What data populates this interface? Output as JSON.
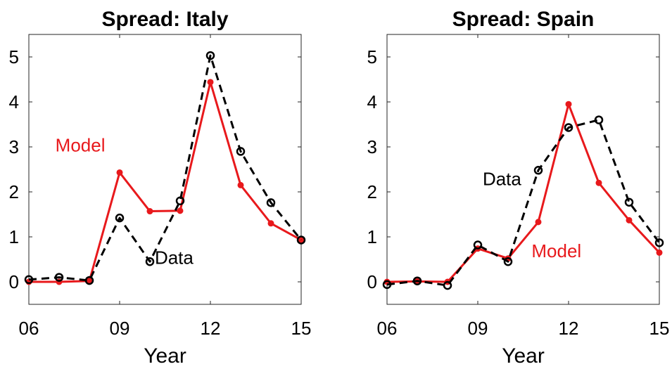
{
  "chart_data": [
    {
      "type": "line",
      "title": "Spread: Italy",
      "xlabel": "Year",
      "ylabel": "",
      "xlim": [
        6,
        15
      ],
      "ylim": [
        -0.5,
        5.5
      ],
      "xticks": [
        6,
        9,
        12,
        15
      ],
      "xtick_labels": [
        "06",
        "09",
        "12",
        "15"
      ],
      "yticks": [
        0,
        1,
        2,
        3,
        4,
        5
      ],
      "ytick_labels": [
        "0",
        "1",
        "2",
        "3",
        "4",
        "5"
      ],
      "grid": false,
      "x": [
        6,
        7,
        8,
        9,
        10,
        11,
        12,
        13,
        14,
        15
      ],
      "series": [
        {
          "name": "Model",
          "color": "#e8191c",
          "style": "solid",
          "marker": "filled-dot",
          "values": [
            0.0,
            0.0,
            0.02,
            2.43,
            1.57,
            1.58,
            4.44,
            2.15,
            1.3,
            0.93
          ]
        },
        {
          "name": "Data",
          "color": "#000000",
          "style": "dashed",
          "marker": "open-circle",
          "values": [
            0.05,
            0.1,
            0.03,
            1.42,
            0.45,
            1.8,
            5.03,
            2.9,
            1.76,
            0.93
          ]
        }
      ],
      "annotations": [
        {
          "text": "Model",
          "color": "#e8191c",
          "x": 7.7,
          "y": 2.9
        },
        {
          "text": "Data",
          "color": "#000000",
          "x": 10.8,
          "y": 0.4
        }
      ]
    },
    {
      "type": "line",
      "title": "Spread: Spain",
      "xlabel": "Year",
      "ylabel": "",
      "xlim": [
        6,
        15
      ],
      "ylim": [
        -0.5,
        5.5
      ],
      "xticks": [
        6,
        9,
        12,
        15
      ],
      "xtick_labels": [
        "06",
        "09",
        "12",
        "15"
      ],
      "yticks": [
        0,
        1,
        2,
        3,
        4,
        5
      ],
      "ytick_labels": [
        "0",
        "1",
        "2",
        "3",
        "4",
        "5"
      ],
      "grid": false,
      "x": [
        6,
        7,
        8,
        9,
        10,
        11,
        12,
        13,
        14,
        15
      ],
      "series": [
        {
          "name": "Model",
          "color": "#e8191c",
          "style": "solid",
          "marker": "filled-dot",
          "values": [
            0.0,
            0.01,
            0.0,
            0.74,
            0.52,
            1.33,
            3.95,
            2.2,
            1.37,
            0.65
          ]
        },
        {
          "name": "Data",
          "color": "#000000",
          "style": "dashed",
          "marker": "open-circle",
          "values": [
            -0.06,
            0.02,
            -0.08,
            0.82,
            0.45,
            2.48,
            3.43,
            3.6,
            1.77,
            0.87
          ]
        }
      ],
      "annotations": [
        {
          "text": "Data",
          "color": "#000000",
          "x": 9.8,
          "y": 2.15
        },
        {
          "text": "Model",
          "color": "#e8191c",
          "x": 11.6,
          "y": 0.55
        }
      ]
    }
  ]
}
